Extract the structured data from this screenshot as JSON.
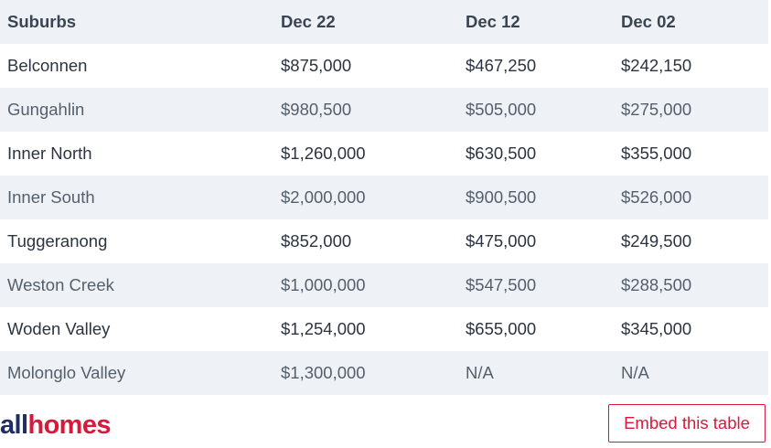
{
  "table": {
    "headers": [
      "Suburbs",
      "Dec 22",
      "Dec 12",
      "Dec 02"
    ],
    "rows": [
      [
        "Belconnen",
        "$875,000",
        "$467,250",
        "$242,150"
      ],
      [
        "Gungahlin",
        "$980,500",
        "$505,000",
        "$275,000"
      ],
      [
        "Inner North",
        "$1,260,000",
        "$630,500",
        "$355,000"
      ],
      [
        "Inner South",
        "$2,000,000",
        "$900,500",
        "$526,000"
      ],
      [
        "Tuggeranong",
        "$852,000",
        "$475,000",
        "$249,500"
      ],
      [
        "Weston Creek",
        "$1,000,000",
        "$547,500",
        "$288,500"
      ],
      [
        "Woden Valley",
        "$1,254,000",
        "$655,000",
        "$345,000"
      ],
      [
        "Molonglo Valley",
        "$1,300,000",
        "N/A",
        "N/A"
      ]
    ]
  },
  "footer": {
    "logo_part1": "all",
    "logo_part2": "homes",
    "embed_label": "Embed this table"
  },
  "colors": {
    "header_bg": "#eef2f6",
    "stripe_bg": "#eef2f6",
    "brand_navy": "#1f2f66",
    "brand_red": "#d9183b"
  }
}
